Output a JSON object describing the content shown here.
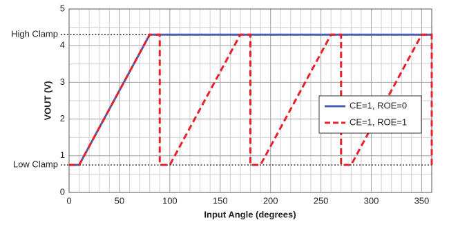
{
  "chart_data": {
    "type": "line",
    "x_label": "Input Angle (degrees)",
    "y_label": "VOUT (V)",
    "xlim": [
      0,
      360
    ],
    "ylim": [
      0,
      5
    ],
    "xticks": [
      0,
      50,
      100,
      150,
      200,
      250,
      300,
      350
    ],
    "yticks": [
      0,
      1,
      2,
      3,
      4,
      5
    ],
    "grid": true,
    "x_minor_step": 10,
    "y_minor_step": 0.5,
    "annotations": [
      {
        "text": "High Clamp",
        "y": 4.3
      },
      {
        "text": "Low Clamp",
        "y": 0.75
      }
    ],
    "legend": "center right",
    "series": [
      {
        "name": "CE=1, ROE=0",
        "color": "#4a5fb0",
        "dash": false,
        "x": [
          0,
          10,
          80,
          360
        ],
        "values": [
          0.75,
          0.75,
          4.3,
          4.3
        ]
      },
      {
        "name": "CE=1, ROE=1",
        "color": "#e8202a",
        "dash": true,
        "x": [
          0,
          10,
          80,
          90,
          90,
          100,
          170,
          180,
          180,
          190,
          260,
          270,
          270,
          280,
          350,
          360,
          360
        ],
        "values": [
          0.75,
          0.75,
          4.3,
          4.3,
          0.75,
          0.75,
          4.3,
          4.3,
          0.75,
          0.75,
          4.3,
          4.3,
          0.75,
          0.75,
          4.3,
          4.3,
          0.75
        ]
      }
    ]
  }
}
